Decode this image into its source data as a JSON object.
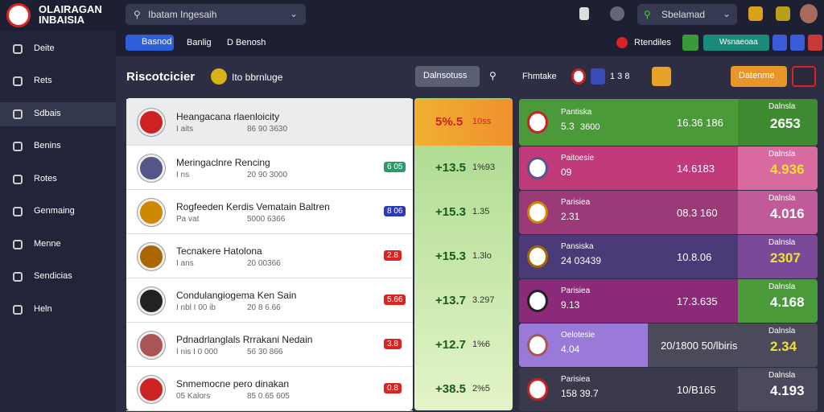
{
  "header": {
    "logo": "OLAIRAGAN INBAISIA",
    "search": "Ibatam Ingesaih",
    "account": "Sbelamad"
  },
  "subbar": {
    "tabs": [
      "Basnod",
      "Banlig",
      "D Benosh"
    ],
    "notice": "Rtendiles",
    "badge": "Wsnaeoaa"
  },
  "sidebar": [
    "Deite",
    "Rets",
    "Sdbais",
    "Benins",
    "Rotes",
    "Genmaing",
    "Menne",
    "Sendicias",
    "Heln"
  ],
  "toolbar": {
    "title": "Riscotcicier",
    "subtitle": "Ito bbrnluge",
    "filter": "Dalnsotuss",
    "label": "Fhmtake",
    "score": "1 3 8",
    "action": "Datenme"
  },
  "rows": [
    {
      "name": "Heangacana rlaenloicity",
      "meta": "I aits",
      "info": "86 90 3630",
      "value": "5%.5",
      "odds": "10ss",
      "card": {
        "label": "Pantiska",
        "a": "5.3",
        "b": "3600",
        "mid": "16.36 186",
        "side": "Dalnsla",
        "total": "2653"
      }
    },
    {
      "name": "Meringaclnre Rencing",
      "meta": "I ns",
      "info": "20 90 3000",
      "badge": "6 05",
      "value": "+13.5",
      "odds": "1%93",
      "card": {
        "label": "Paitoesie",
        "a": "09",
        "b": "",
        "mid": "14.6183",
        "side": "Dalnsla",
        "total": "4.936"
      }
    },
    {
      "name": "Rogfeeden Kerdis Vematain Baltren",
      "meta": "Pa vat",
      "info": "5000 6366",
      "badge": "8 06",
      "value": "+15.3",
      "odds": "1.35",
      "card": {
        "label": "Parisiea",
        "a": "2.31",
        "b": "",
        "mid": "08.3 160",
        "side": "Dalnsla",
        "total": "4.016"
      }
    },
    {
      "name": "Tecnakere Hatolona",
      "meta": "I ans",
      "info": "20 00366",
      "badge": "2.8",
      "value": "+15.3",
      "odds": "1.3lo",
      "card": {
        "label": "Pansiska",
        "a": "24 03439",
        "b": "",
        "mid": "10.8.06",
        "side": "Dalnsla",
        "total": "2307"
      }
    },
    {
      "name": "Condulangiogema Ken Sain",
      "meta": "I nbl I 00 ib",
      "info": "20 8 6.66",
      "badge": "5.66",
      "value": "+13.7",
      "odds": "3.297",
      "card": {
        "label": "Parisiea",
        "a": "9.13",
        "b": "",
        "mid": "17.3.635",
        "side": "Dalnsla",
        "total": "4.168"
      }
    },
    {
      "name": "Pdnadrlanglals Rrrakani Nedain",
      "meta": "I nis I 0 000",
      "info": "56 30 866",
      "badge": "3.8",
      "value": "+12.7",
      "odds": "1%6",
      "card": {
        "label": "Oelotesie",
        "a": "4.04",
        "b": "",
        "mid": "20/1800 50/lbiris",
        "side": "Dalnsla",
        "total": "2.34"
      }
    },
    {
      "name": "Snmemocne pero dinakan",
      "meta": "05 Kalors",
      "info": "85 0.65 605",
      "badge": "0.8",
      "value": "+38.5",
      "odds": "2%5",
      "card": {
        "label": "Parisiea",
        "a": "158 39.7",
        "b": "",
        "mid": "10/B165",
        "side": "Dalnsla",
        "total": "4.193"
      }
    }
  ]
}
